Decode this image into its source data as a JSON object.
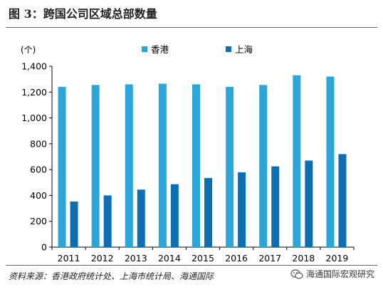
{
  "figure": {
    "title": "图 3：跨国公司区域总部数量",
    "source": "资料来源：香港政府统计处、上海市统计局、海通国际",
    "watermark": "海通国际宏观研究"
  },
  "chart_data": {
    "type": "bar",
    "unit_label": "(个)",
    "categories": [
      "2011",
      "2012",
      "2013",
      "2014",
      "2015",
      "2016",
      "2017",
      "2018",
      "2019"
    ],
    "series": [
      {
        "name": "香港",
        "color": "#2AA6DA",
        "values": [
          1240,
          1255,
          1260,
          1265,
          1260,
          1240,
          1255,
          1330,
          1320
        ]
      },
      {
        "name": "上海",
        "color": "#0D6FB3",
        "values": [
          353,
          400,
          445,
          487,
          535,
          579,
          625,
          670,
          720
        ]
      }
    ],
    "ylim": [
      0,
      1400
    ],
    "yticks": [
      0,
      200,
      400,
      600,
      800,
      1000,
      1200,
      1400
    ],
    "ytick_labels": [
      "0",
      "200",
      "400",
      "600",
      "800",
      "1,000",
      "1,200",
      "1,400"
    ],
    "grid": false,
    "legend": "top-center"
  }
}
